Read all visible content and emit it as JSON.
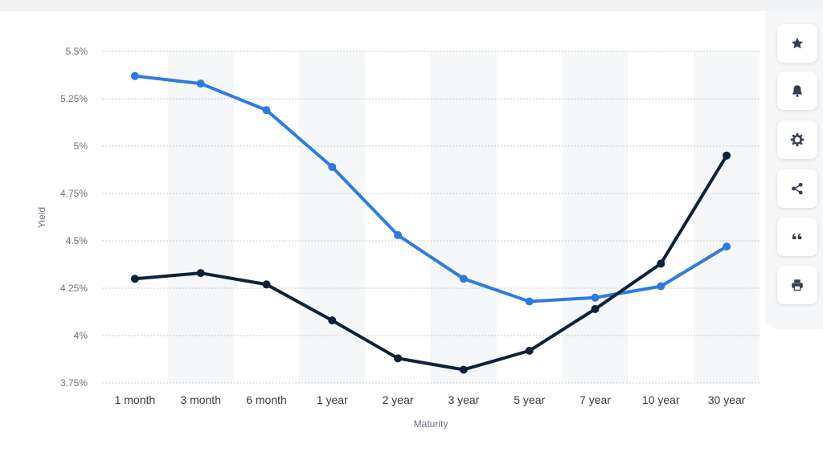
{
  "chart_data": {
    "type": "line",
    "xlabel": "Maturity",
    "ylabel": "Yield",
    "categories": [
      "1 month",
      "3 month",
      "6 month",
      "1 year",
      "2 year",
      "3 year",
      "5 year",
      "7 year",
      "10 year",
      "30 year"
    ],
    "y_ticks": [
      "3.75%",
      "4%",
      "4.25%",
      "4.5%",
      "4.75%",
      "5%",
      "5.25%",
      "5.5%"
    ],
    "ylim": [
      3.75,
      5.5
    ],
    "grid": true,
    "series": [
      {
        "color": "#2e7be0",
        "values": [
          5.37,
          5.33,
          5.19,
          4.89,
          4.53,
          4.3,
          4.18,
          4.2,
          4.26,
          4.47
        ]
      },
      {
        "color": "#0f2138",
        "values": [
          4.3,
          4.33,
          4.27,
          4.08,
          3.88,
          3.82,
          3.92,
          4.14,
          4.38,
          4.95
        ]
      }
    ]
  },
  "toolbar": {
    "buttons": [
      {
        "name": "favorite-button",
        "icon": "star-icon"
      },
      {
        "name": "notification-button",
        "icon": "bell-icon"
      },
      {
        "name": "settings-button",
        "icon": "gear-icon"
      },
      {
        "name": "share-button",
        "icon": "share-icon"
      },
      {
        "name": "cite-button",
        "icon": "quote-icon"
      },
      {
        "name": "print-button",
        "icon": "printer-icon"
      }
    ]
  }
}
